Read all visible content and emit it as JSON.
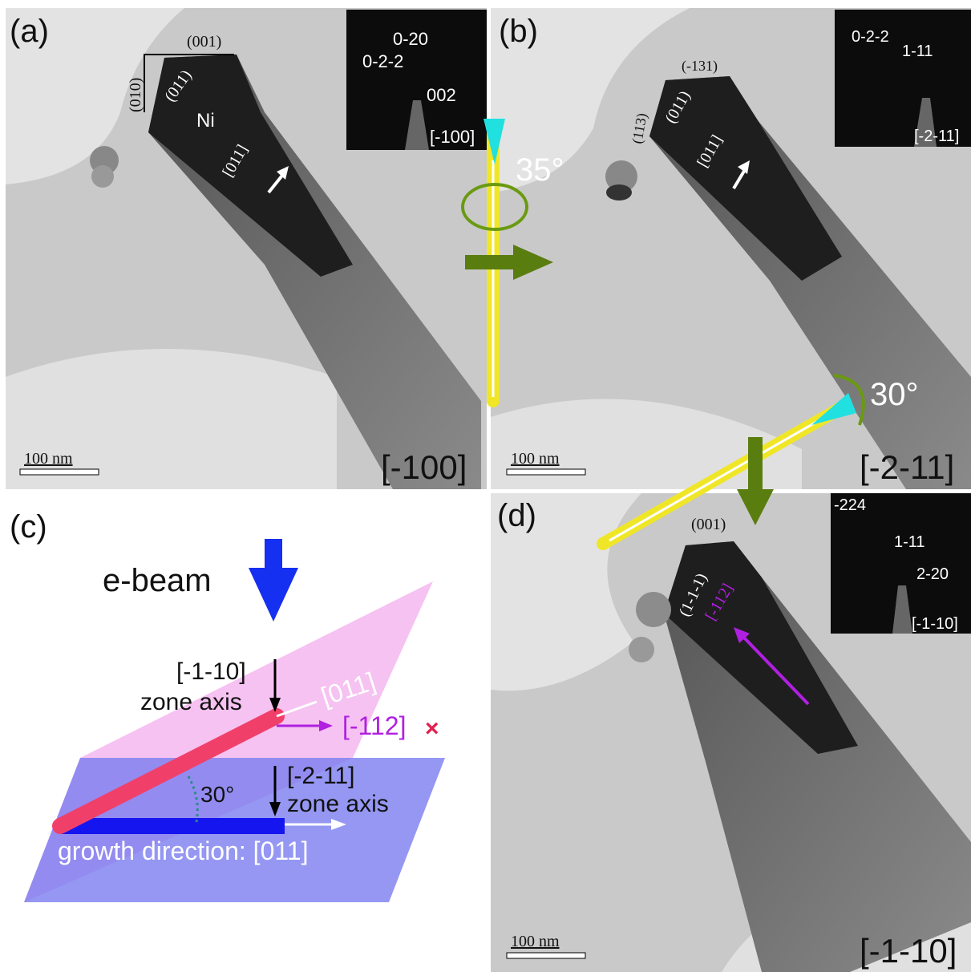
{
  "panels": {
    "a": {
      "label": "(a)",
      "zone": "[-100]",
      "scale": "100 nm",
      "facet_top": "(001)",
      "facet_side": "(010)",
      "facet_tip": "(011)",
      "material": "Ni",
      "growth": "[011]",
      "saed": [
        "0-20",
        "0-2-2",
        "002",
        "[-100]"
      ]
    },
    "b": {
      "label": "(b)",
      "zone": "[-2-11]",
      "scale": "100 nm",
      "facet_top": "(-131)",
      "facet_side": "(113)",
      "facet_tip": "(011)",
      "growth": "[011]",
      "saed": [
        "0-2-2",
        "1-11",
        "[-2-11]"
      ]
    },
    "d": {
      "label": "(d)",
      "zone": "[-1-10]",
      "scale": "100 nm",
      "facet_top": "(001)",
      "facet_tip": "(1-1-1)",
      "growth": "[-112]",
      "saed": [
        "-224",
        "1-11",
        "2-20",
        "[-1-10]"
      ]
    },
    "c": {
      "label": "(c)",
      "beam": "e-beam",
      "zone1": "[-1-10]",
      "zone1_text": "zone axis",
      "dir1": "[011]",
      "dir2": "[-112]",
      "cross": "×",
      "zone2": "[-2-11]",
      "zone2_text": "zone axis",
      "angle": "30°",
      "growth": "growth direction: [011]"
    }
  },
  "rotations": [
    "35°",
    "30°"
  ]
}
